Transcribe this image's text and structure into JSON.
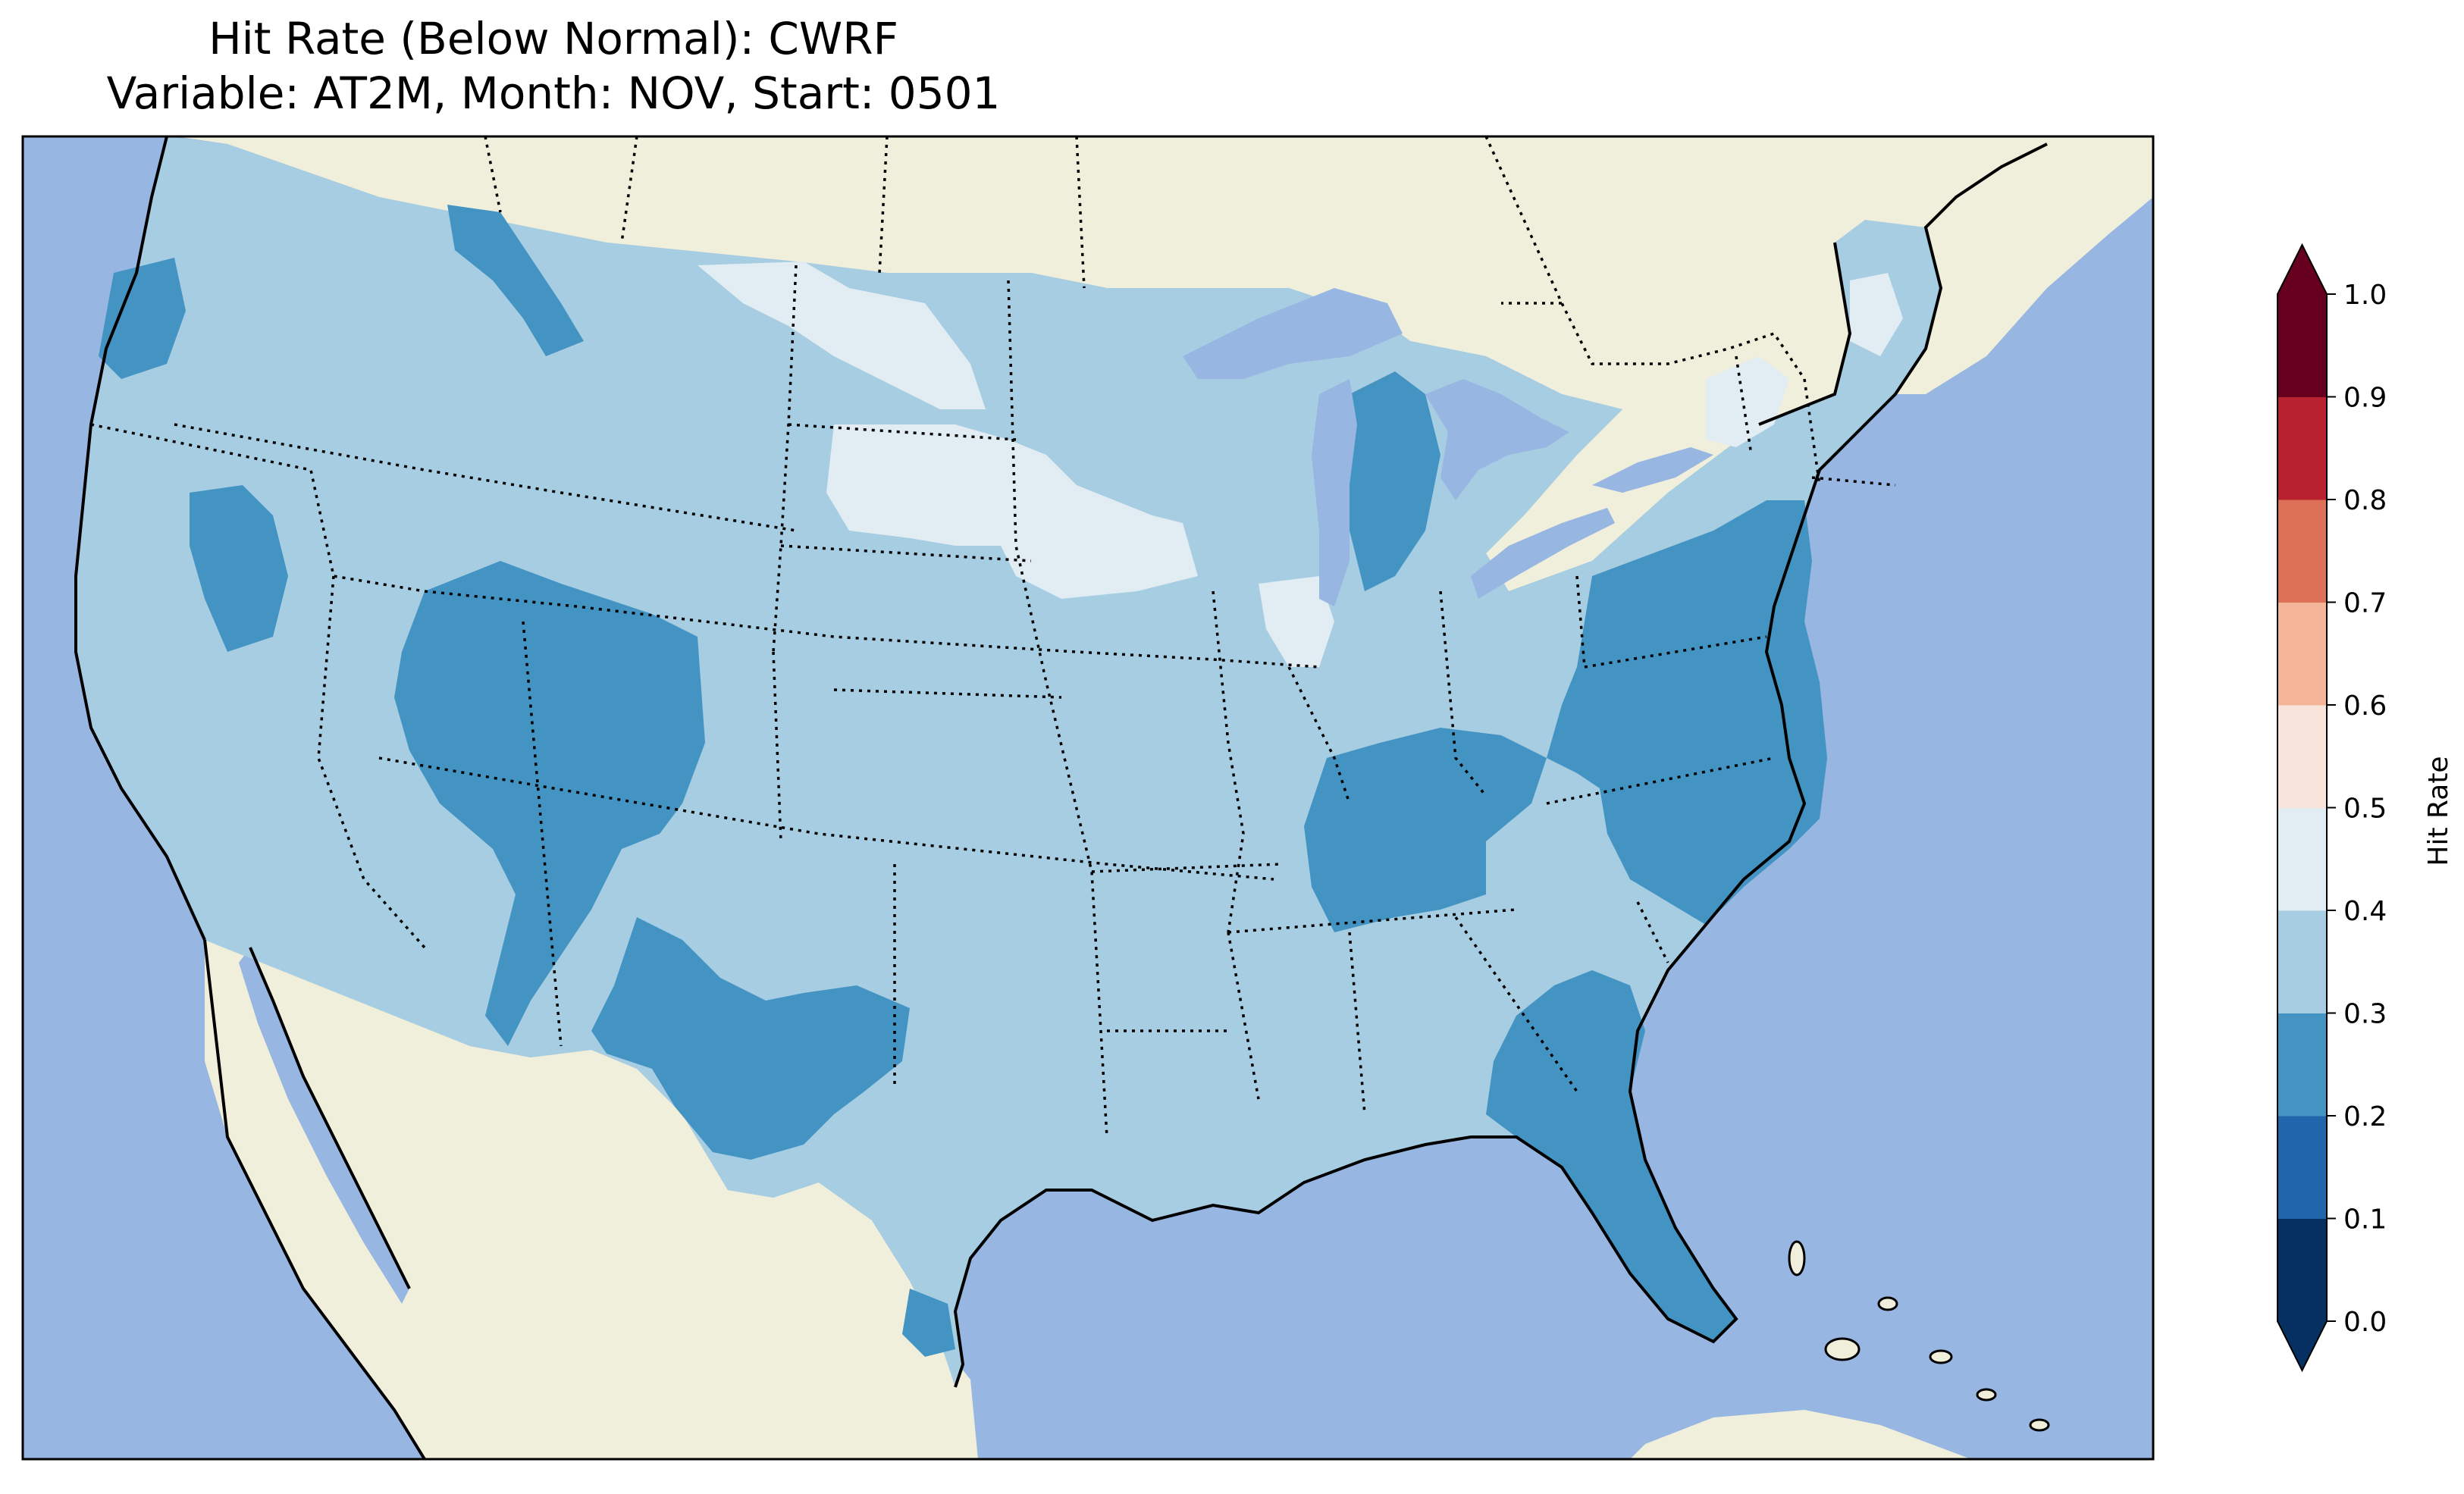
{
  "title": {
    "line1": "Hit Rate (Below Normal): CWRF",
    "line2": "Variable: AT2M, Month: NOV, Start: 0501"
  },
  "map": {
    "extent": "Contiguous United States with parts of Canada, Mexico, Cuba and the Bahamas",
    "ocean_color": "#97b6e1",
    "land_color": "#efefdb",
    "lake_color": "#97b6e1",
    "regions": [
      {
        "name": "Pacific Northwest coast",
        "band": "0.2-0.3"
      },
      {
        "name": "Northern Rockies (Idaho/Montana)",
        "band": "0.2-0.3"
      },
      {
        "name": "Central Nevada",
        "band": "0.2-0.3"
      },
      {
        "name": "Four Corners (Utah/Colorado/New Mexico/Arizona)",
        "band": "0.2-0.3"
      },
      {
        "name": "West Texas",
        "band": "0.2-0.3"
      },
      {
        "name": "South Texas tip",
        "band": "0.2-0.3"
      },
      {
        "name": "Northern Michigan",
        "band": "0.2-0.3"
      },
      {
        "name": "Kentucky/Tennessee",
        "band": "0.2-0.3"
      },
      {
        "name": "Mid-Atlantic (Pennsylvania/Virginia/North Carolina)",
        "band": "0.2-0.3"
      },
      {
        "name": "Georgia/Florida",
        "band": "0.2-0.3"
      },
      {
        "name": "North Dakota",
        "band": "0.4-0.5"
      },
      {
        "name": "South Dakota/Minnesota",
        "band": "0.4-0.5"
      },
      {
        "name": "Northern Illinois",
        "band": "0.4-0.5"
      },
      {
        "name": "Northern New York/Maine",
        "band": "0.4-0.5"
      },
      {
        "name": "Rest of contiguous US",
        "band": "0.3-0.4"
      }
    ]
  },
  "colorbar": {
    "label": "Hit Rate",
    "ticks": [
      "0.0",
      "0.1",
      "0.2",
      "0.3",
      "0.4",
      "0.5",
      "0.6",
      "0.7",
      "0.8",
      "0.9",
      "1.0"
    ],
    "tick_values": [
      0.0,
      0.1,
      0.2,
      0.3,
      0.4,
      0.5,
      0.6,
      0.7,
      0.8,
      0.9,
      1.0
    ],
    "levels": [
      {
        "range": [
          0.0,
          0.1
        ],
        "color": "#053061"
      },
      {
        "range": [
          0.1,
          0.2
        ],
        "color": "#2166ac"
      },
      {
        "range": [
          0.2,
          0.3
        ],
        "color": "#4393c3"
      },
      {
        "range": [
          0.3,
          0.4
        ],
        "color": "#a6cde2"
      },
      {
        "range": [
          0.4,
          0.5
        ],
        "color": "#e1ecf3"
      },
      {
        "range": [
          0.5,
          0.6
        ],
        "color": "#f8e4da"
      },
      {
        "range": [
          0.6,
          0.7
        ],
        "color": "#f4b599"
      },
      {
        "range": [
          0.7,
          0.8
        ],
        "color": "#dd7157"
      },
      {
        "range": [
          0.8,
          0.9
        ],
        "color": "#b8212f"
      },
      {
        "range": [
          0.9,
          1.0
        ],
        "color": "#67001f"
      }
    ],
    "extend": "both"
  }
}
